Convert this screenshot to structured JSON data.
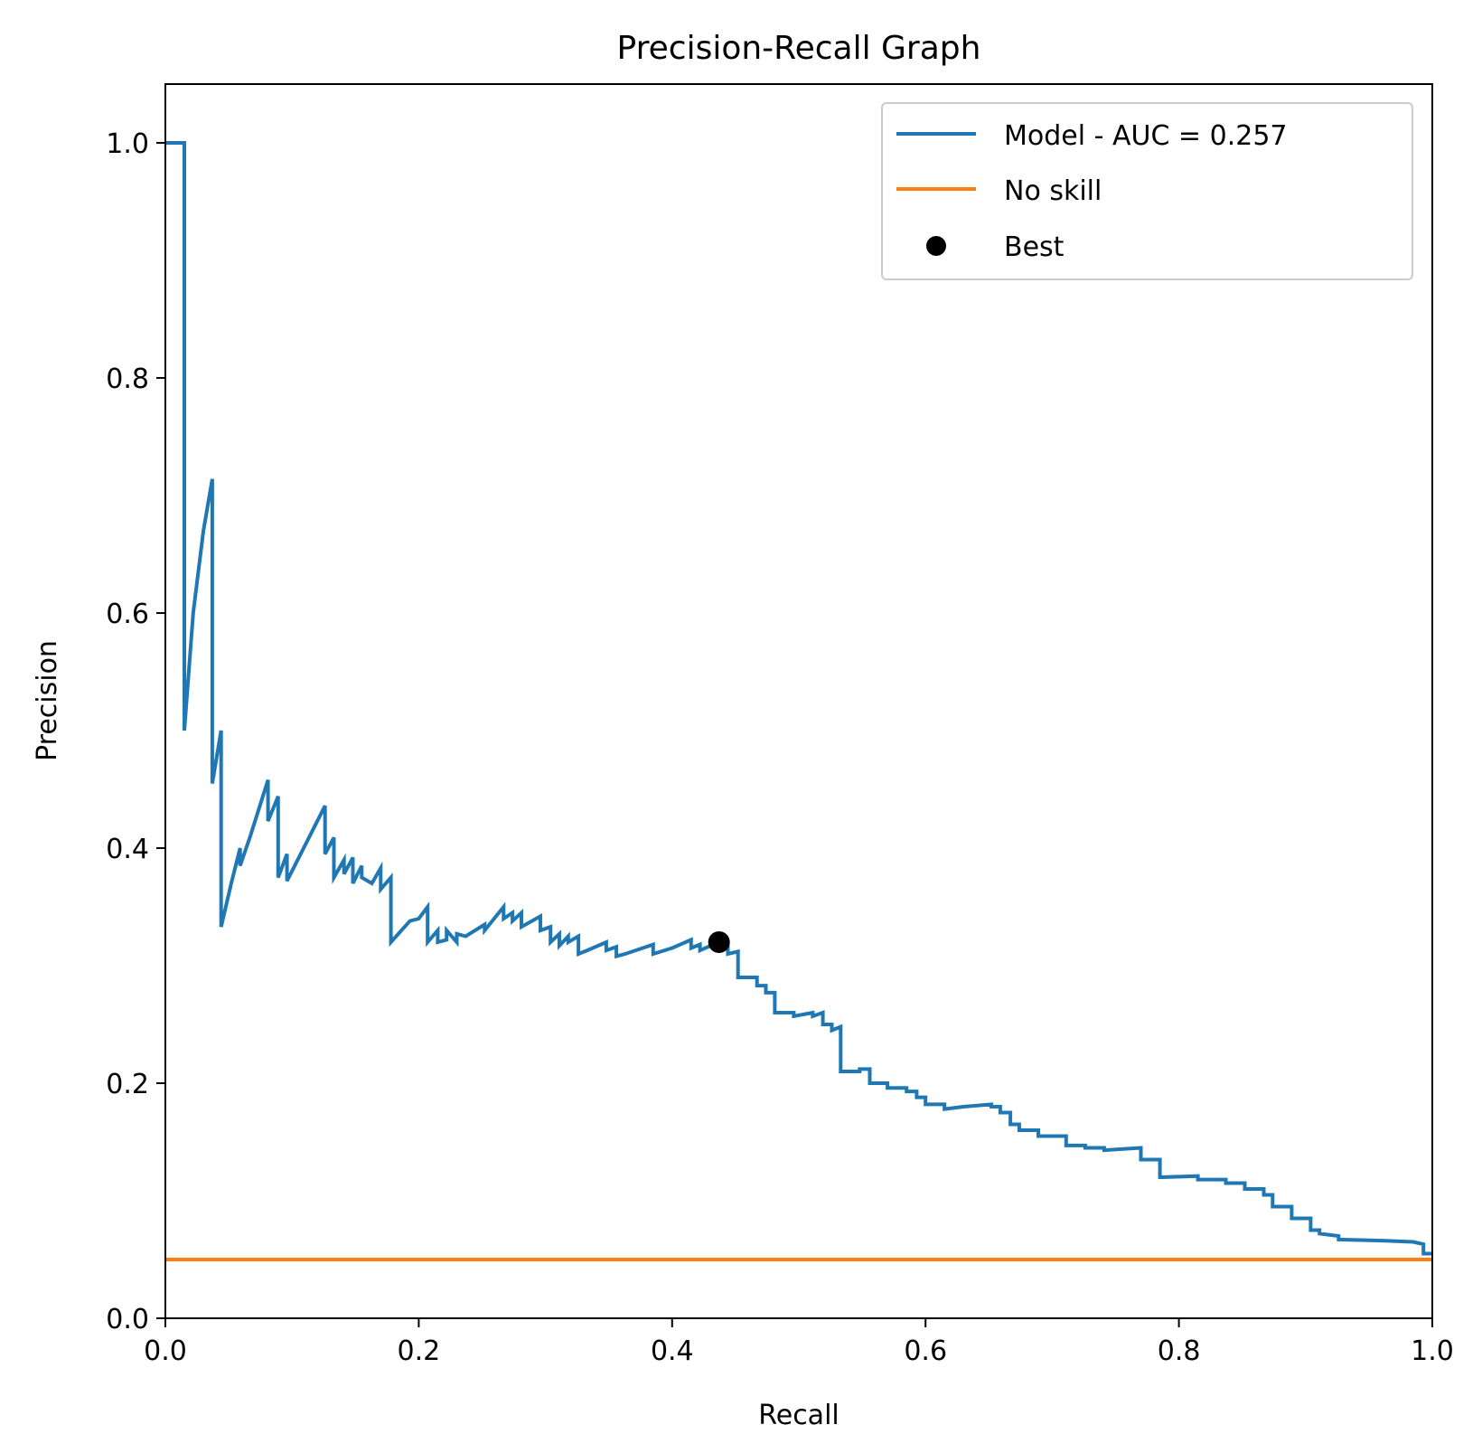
{
  "chart_data": {
    "type": "line",
    "title": "Precision-Recall Graph",
    "xlabel": "Recall",
    "ylabel": "Precision",
    "xlim": [
      0,
      1
    ],
    "ylim": [
      0,
      1.05
    ],
    "xticks": [
      0.0,
      0.2,
      0.4,
      0.6,
      0.8,
      1.0
    ],
    "xtick_labels": [
      "0.0",
      "0.2",
      "0.4",
      "0.6",
      "0.8",
      "1.0"
    ],
    "yticks": [
      0.0,
      0.2,
      0.4,
      0.6,
      0.8,
      1.0
    ],
    "ytick_labels": [
      "0.0",
      "0.2",
      "0.4",
      "0.6",
      "0.8",
      "1.0"
    ],
    "grid": false,
    "legend_position": "top-right",
    "series": [
      {
        "name": "Model - AUC = 0.257",
        "kind": "line",
        "color": "#1f77b4",
        "points": [
          [
            0.0,
            1.0
          ],
          [
            0.015,
            1.0
          ],
          [
            0.015,
            0.5
          ],
          [
            0.022,
            0.6
          ],
          [
            0.03,
            0.67
          ],
          [
            0.037,
            0.714
          ],
          [
            0.037,
            0.455
          ],
          [
            0.044,
            0.5
          ],
          [
            0.044,
            0.333
          ],
          [
            0.052,
            0.37
          ],
          [
            0.059,
            0.4
          ],
          [
            0.059,
            0.385
          ],
          [
            0.067,
            0.41
          ],
          [
            0.081,
            0.458
          ],
          [
            0.081,
            0.423
          ],
          [
            0.089,
            0.444
          ],
          [
            0.089,
            0.375
          ],
          [
            0.096,
            0.395
          ],
          [
            0.096,
            0.372
          ],
          [
            0.126,
            0.436
          ],
          [
            0.126,
            0.395
          ],
          [
            0.133,
            0.409
          ],
          [
            0.133,
            0.375
          ],
          [
            0.141,
            0.39
          ],
          [
            0.141,
            0.378
          ],
          [
            0.148,
            0.392
          ],
          [
            0.148,
            0.37
          ],
          [
            0.155,
            0.385
          ],
          [
            0.155,
            0.375
          ],
          [
            0.163,
            0.37
          ],
          [
            0.17,
            0.383
          ],
          [
            0.17,
            0.365
          ],
          [
            0.178,
            0.375
          ],
          [
            0.178,
            0.32
          ],
          [
            0.193,
            0.338
          ],
          [
            0.2,
            0.34
          ],
          [
            0.207,
            0.35
          ],
          [
            0.207,
            0.32
          ],
          [
            0.215,
            0.33
          ],
          [
            0.215,
            0.32
          ],
          [
            0.222,
            0.322
          ],
          [
            0.222,
            0.33
          ],
          [
            0.23,
            0.32
          ],
          [
            0.23,
            0.327
          ],
          [
            0.237,
            0.325
          ],
          [
            0.252,
            0.335
          ],
          [
            0.252,
            0.33
          ],
          [
            0.267,
            0.35
          ],
          [
            0.267,
            0.34
          ],
          [
            0.274,
            0.345
          ],
          [
            0.274,
            0.338
          ],
          [
            0.281,
            0.345
          ],
          [
            0.281,
            0.333
          ],
          [
            0.296,
            0.342
          ],
          [
            0.296,
            0.33
          ],
          [
            0.304,
            0.333
          ],
          [
            0.304,
            0.32
          ],
          [
            0.311,
            0.327
          ],
          [
            0.311,
            0.317
          ],
          [
            0.318,
            0.325
          ],
          [
            0.318,
            0.32
          ],
          [
            0.326,
            0.325
          ],
          [
            0.326,
            0.31
          ],
          [
            0.333,
            0.313
          ],
          [
            0.348,
            0.32
          ],
          [
            0.348,
            0.313
          ],
          [
            0.356,
            0.316
          ],
          [
            0.356,
            0.308
          ],
          [
            0.363,
            0.31
          ],
          [
            0.385,
            0.318
          ],
          [
            0.385,
            0.31
          ],
          [
            0.4,
            0.315
          ],
          [
            0.415,
            0.322
          ],
          [
            0.415,
            0.315
          ],
          [
            0.422,
            0.318
          ],
          [
            0.422,
            0.313
          ],
          [
            0.437,
            0.32
          ],
          [
            0.437,
            0.316
          ],
          [
            0.444,
            0.318
          ],
          [
            0.444,
            0.31
          ],
          [
            0.452,
            0.312
          ],
          [
            0.452,
            0.305
          ],
          [
            0.452,
            0.298
          ],
          [
            0.452,
            0.29
          ],
          [
            0.467,
            0.29
          ],
          [
            0.467,
            0.283
          ],
          [
            0.474,
            0.283
          ],
          [
            0.474,
            0.277
          ],
          [
            0.481,
            0.277
          ],
          [
            0.481,
            0.26
          ],
          [
            0.496,
            0.26
          ],
          [
            0.496,
            0.257
          ],
          [
            0.511,
            0.26
          ],
          [
            0.511,
            0.257
          ],
          [
            0.519,
            0.26
          ],
          [
            0.519,
            0.25
          ],
          [
            0.526,
            0.25
          ],
          [
            0.526,
            0.245
          ],
          [
            0.533,
            0.248
          ],
          [
            0.533,
            0.21
          ],
          [
            0.548,
            0.21
          ],
          [
            0.548,
            0.212
          ],
          [
            0.556,
            0.212
          ],
          [
            0.556,
            0.2
          ],
          [
            0.57,
            0.2
          ],
          [
            0.57,
            0.196
          ],
          [
            0.585,
            0.196
          ],
          [
            0.585,
            0.193
          ],
          [
            0.593,
            0.193
          ],
          [
            0.593,
            0.188
          ],
          [
            0.6,
            0.188
          ],
          [
            0.6,
            0.182
          ],
          [
            0.615,
            0.182
          ],
          [
            0.615,
            0.178
          ],
          [
            0.63,
            0.18
          ],
          [
            0.652,
            0.182
          ],
          [
            0.652,
            0.18
          ],
          [
            0.659,
            0.18
          ],
          [
            0.659,
            0.175
          ],
          [
            0.667,
            0.175
          ],
          [
            0.667,
            0.165
          ],
          [
            0.674,
            0.165
          ],
          [
            0.674,
            0.16
          ],
          [
            0.689,
            0.16
          ],
          [
            0.689,
            0.155
          ],
          [
            0.711,
            0.155
          ],
          [
            0.711,
            0.147
          ],
          [
            0.726,
            0.147
          ],
          [
            0.726,
            0.145
          ],
          [
            0.741,
            0.145
          ],
          [
            0.741,
            0.143
          ],
          [
            0.77,
            0.145
          ],
          [
            0.77,
            0.135
          ],
          [
            0.785,
            0.135
          ],
          [
            0.785,
            0.12
          ],
          [
            0.815,
            0.121
          ],
          [
            0.815,
            0.118
          ],
          [
            0.837,
            0.118
          ],
          [
            0.837,
            0.115
          ],
          [
            0.852,
            0.115
          ],
          [
            0.852,
            0.11
          ],
          [
            0.867,
            0.11
          ],
          [
            0.867,
            0.105
          ],
          [
            0.874,
            0.105
          ],
          [
            0.874,
            0.095
          ],
          [
            0.889,
            0.095
          ],
          [
            0.889,
            0.085
          ],
          [
            0.904,
            0.085
          ],
          [
            0.904,
            0.075
          ],
          [
            0.911,
            0.075
          ],
          [
            0.911,
            0.072
          ],
          [
            0.926,
            0.07
          ],
          [
            0.926,
            0.067
          ],
          [
            0.963,
            0.066
          ],
          [
            0.985,
            0.065
          ],
          [
            0.993,
            0.063
          ],
          [
            0.993,
            0.055
          ],
          [
            1.0,
            0.055
          ]
        ]
      },
      {
        "name": "No skill",
        "kind": "line",
        "color": "#ff7f0e",
        "points": [
          [
            0.0,
            0.05
          ],
          [
            1.0,
            0.05
          ]
        ]
      },
      {
        "name": "Best",
        "kind": "scatter",
        "color": "#000000",
        "points": [
          [
            0.437,
            0.32
          ]
        ]
      }
    ]
  }
}
